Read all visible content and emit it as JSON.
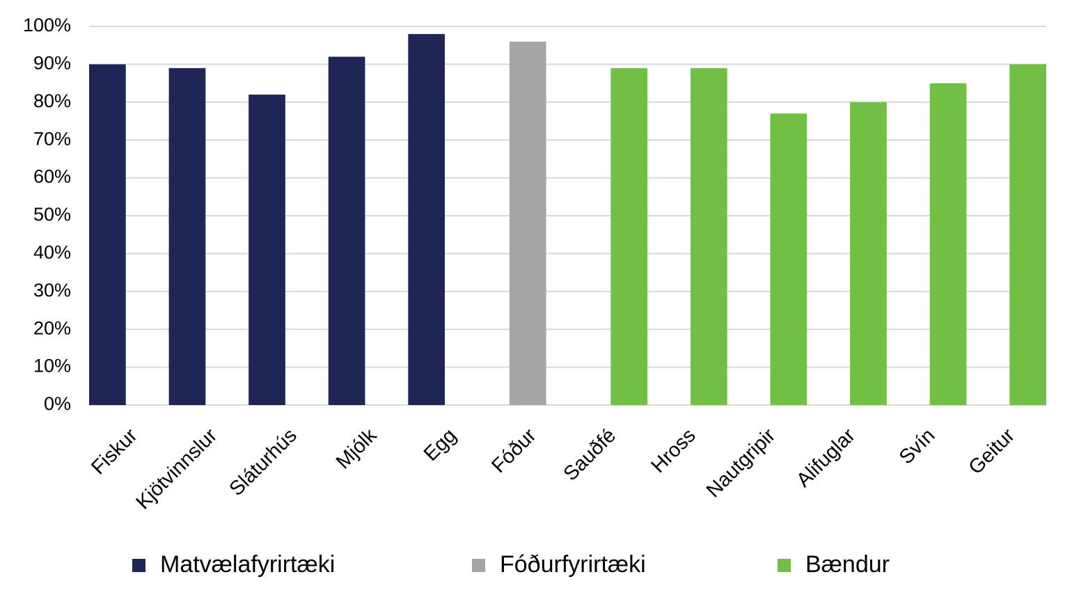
{
  "chart_data": {
    "type": "bar",
    "categories": [
      "Fiskur",
      "Kjötvinnslur",
      "Sláturhús",
      "Mjólk",
      "Egg",
      "Fóður",
      "Sauðfé",
      "Hross",
      "Nautgripir",
      "Alifuglar",
      "Svín",
      "Geitur"
    ],
    "series": [
      {
        "name": "Matvælafyrirtæki",
        "color": "#1f2656",
        "values": [
          90,
          89,
          82,
          92,
          98,
          null,
          null,
          null,
          null,
          null,
          null,
          null
        ]
      },
      {
        "name": "Fóðurfyrirtæki",
        "color": "#a5a5a5",
        "values": [
          null,
          null,
          null,
          null,
          null,
          96,
          null,
          null,
          null,
          null,
          null,
          null
        ]
      },
      {
        "name": "Bændur",
        "color": "#71bf44",
        "values": [
          null,
          null,
          null,
          null,
          null,
          null,
          89,
          89,
          77,
          80,
          85,
          90
        ]
      }
    ],
    "ylim": [
      0,
      100
    ],
    "yticks": [
      {
        "value": 0,
        "label": "0%"
      },
      {
        "value": 10,
        "label": "10%"
      },
      {
        "value": 20,
        "label": "20%"
      },
      {
        "value": 30,
        "label": "30%"
      },
      {
        "value": 40,
        "label": "40%"
      },
      {
        "value": 50,
        "label": "50%"
      },
      {
        "value": 60,
        "label": "60%"
      },
      {
        "value": 70,
        "label": "70%"
      },
      {
        "value": 80,
        "label": "80%"
      },
      {
        "value": 90,
        "label": "90%"
      },
      {
        "value": 100,
        "label": "100%"
      }
    ],
    "grid": true,
    "legend": "bottom"
  }
}
